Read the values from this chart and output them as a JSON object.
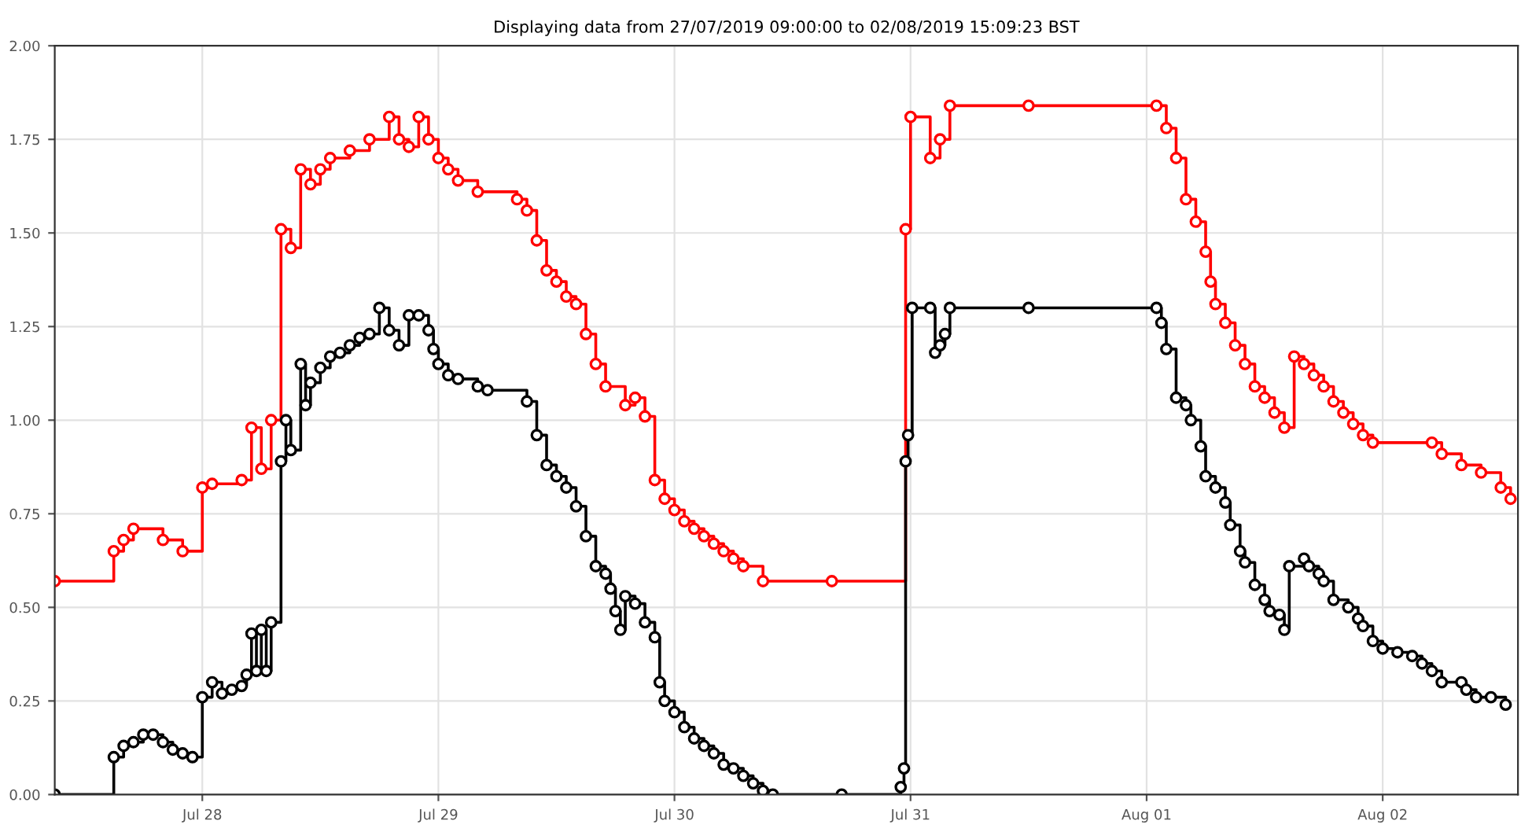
{
  "chart_data": {
    "type": "step",
    "title": "Displaying data from 27/07/2019 09:00:00 to 02/08/2019 15:09:23 BST",
    "xlim": [
      "2019-07-27T09:00",
      "2019-08-02T13:45"
    ],
    "xticks": [
      {
        "value": "2019-07-28",
        "label": "Jul 28"
      },
      {
        "value": "2019-07-29",
        "label": "Jul 29"
      },
      {
        "value": "2019-07-30",
        "label": "Jul 30"
      },
      {
        "value": "2019-07-31",
        "label": "Jul 31"
      },
      {
        "value": "2019-08-01",
        "label": "Aug 01"
      },
      {
        "value": "2019-08-02",
        "label": "Aug 02"
      }
    ],
    "ylim": [
      0,
      2
    ],
    "yticks": [
      {
        "value": 0,
        "label": "0.00"
      },
      {
        "value": 0.25,
        "label": "0.25"
      },
      {
        "value": 0.5,
        "label": "0.50"
      },
      {
        "value": 0.75,
        "label": "0.75"
      },
      {
        "value": 1,
        "label": "1.00"
      },
      {
        "value": 1.25,
        "label": "1.25"
      },
      {
        "value": 1.5,
        "label": "1.50"
      },
      {
        "value": 1.75,
        "label": "1.75"
      },
      {
        "value": 2,
        "label": "2.00"
      }
    ],
    "grid": true,
    "marker": "circle",
    "line_style": "solid",
    "series": [
      {
        "color": "#ff0000",
        "x": [
          "2019-07-27T09:00",
          "2019-07-27T15:00",
          "2019-07-27T16:00",
          "2019-07-27T17:00",
          "2019-07-27T20:00",
          "2019-07-27T22:00",
          "2019-07-28T00:00",
          "2019-07-28T01:00",
          "2019-07-28T04:00",
          "2019-07-28T05:00",
          "2019-07-28T06:00",
          "2019-07-28T07:00",
          "2019-07-28T08:00",
          "2019-07-28T09:00",
          "2019-07-28T10:00",
          "2019-07-28T11:00",
          "2019-07-28T12:00",
          "2019-07-28T13:00",
          "2019-07-28T15:00",
          "2019-07-28T17:00",
          "2019-07-28T19:00",
          "2019-07-28T20:00",
          "2019-07-28T21:00",
          "2019-07-28T22:00",
          "2019-07-28T23:00",
          "2019-07-29T00:00",
          "2019-07-29T01:00",
          "2019-07-29T02:00",
          "2019-07-29T04:00",
          "2019-07-29T08:00",
          "2019-07-29T09:00",
          "2019-07-29T10:00",
          "2019-07-29T11:00",
          "2019-07-29T12:00",
          "2019-07-29T13:00",
          "2019-07-29T14:00",
          "2019-07-29T15:00",
          "2019-07-29T16:00",
          "2019-07-29T17:00",
          "2019-07-29T19:00",
          "2019-07-29T20:00",
          "2019-07-29T21:00",
          "2019-07-29T22:00",
          "2019-07-29T23:00",
          "2019-07-30T00:00",
          "2019-07-30T01:00",
          "2019-07-30T02:00",
          "2019-07-30T03:00",
          "2019-07-30T04:00",
          "2019-07-30T05:00",
          "2019-07-30T06:00",
          "2019-07-30T07:00",
          "2019-07-30T09:00",
          "2019-07-30T16:00",
          "2019-07-30T23:30",
          "2019-07-31T00:00",
          "2019-07-31T02:00",
          "2019-07-31T03:00",
          "2019-07-31T04:00",
          "2019-07-31T12:00",
          "2019-08-01T01:00",
          "2019-08-01T02:00",
          "2019-08-01T03:00",
          "2019-08-01T04:00",
          "2019-08-01T05:00",
          "2019-08-01T06:00",
          "2019-08-01T06:30",
          "2019-08-01T07:00",
          "2019-08-01T08:00",
          "2019-08-01T09:00",
          "2019-08-01T10:00",
          "2019-08-01T11:00",
          "2019-08-01T12:00",
          "2019-08-01T13:00",
          "2019-08-01T14:00",
          "2019-08-01T15:00",
          "2019-08-01T16:00",
          "2019-08-01T17:00",
          "2019-08-01T18:00",
          "2019-08-01T19:00",
          "2019-08-01T20:00",
          "2019-08-01T21:00",
          "2019-08-01T22:00",
          "2019-08-01T23:00",
          "2019-08-02T05:00",
          "2019-08-02T06:00",
          "2019-08-02T08:00",
          "2019-08-02T10:00",
          "2019-08-02T12:00",
          "2019-08-02T13:00"
        ],
        "values": [
          0.57,
          0.65,
          0.68,
          0.71,
          0.68,
          0.65,
          0.82,
          0.83,
          0.84,
          0.98,
          0.87,
          1.0,
          1.51,
          1.46,
          1.67,
          1.63,
          1.67,
          1.7,
          1.72,
          1.75,
          1.81,
          1.75,
          1.73,
          1.81,
          1.75,
          1.7,
          1.67,
          1.64,
          1.61,
          1.59,
          1.56,
          1.48,
          1.4,
          1.37,
          1.33,
          1.31,
          1.23,
          1.15,
          1.09,
          1.04,
          1.06,
          1.01,
          0.84,
          0.79,
          0.76,
          0.73,
          0.71,
          0.69,
          0.67,
          0.65,
          0.63,
          0.61,
          0.57,
          0.57,
          1.51,
          1.81,
          1.7,
          1.75,
          1.84,
          1.84,
          1.84,
          1.78,
          1.7,
          1.59,
          1.53,
          1.45,
          1.37,
          1.31,
          1.26,
          1.2,
          1.15,
          1.09,
          1.06,
          1.02,
          0.98,
          1.17,
          1.15,
          1.12,
          1.09,
          1.05,
          1.02,
          0.99,
          0.96,
          0.94,
          0.94,
          0.91,
          0.88,
          0.86,
          0.82,
          0.79
        ]
      },
      {
        "color": "#000000",
        "x": [
          "2019-07-27T09:00",
          "2019-07-27T15:00",
          "2019-07-27T16:00",
          "2019-07-27T17:00",
          "2019-07-27T18:00",
          "2019-07-27T19:00",
          "2019-07-27T20:00",
          "2019-07-27T21:00",
          "2019-07-27T22:00",
          "2019-07-27T23:00",
          "2019-07-28T00:00",
          "2019-07-28T01:00",
          "2019-07-28T02:00",
          "2019-07-28T03:00",
          "2019-07-28T04:00",
          "2019-07-28T04:30",
          "2019-07-28T05:00",
          "2019-07-28T05:30",
          "2019-07-28T06:00",
          "2019-07-28T06:30",
          "2019-07-28T07:00",
          "2019-07-28T08:00",
          "2019-07-28T08:30",
          "2019-07-28T09:00",
          "2019-07-28T10:00",
          "2019-07-28T10:30",
          "2019-07-28T11:00",
          "2019-07-28T12:00",
          "2019-07-28T13:00",
          "2019-07-28T14:00",
          "2019-07-28T15:00",
          "2019-07-28T16:00",
          "2019-07-28T17:00",
          "2019-07-28T18:00",
          "2019-07-28T19:00",
          "2019-07-28T20:00",
          "2019-07-28T21:00",
          "2019-07-28T22:00",
          "2019-07-28T23:00",
          "2019-07-28T23:30",
          "2019-07-29T00:00",
          "2019-07-29T01:00",
          "2019-07-29T02:00",
          "2019-07-29T04:00",
          "2019-07-29T05:00",
          "2019-07-29T09:00",
          "2019-07-29T10:00",
          "2019-07-29T11:00",
          "2019-07-29T12:00",
          "2019-07-29T13:00",
          "2019-07-29T14:00",
          "2019-07-29T15:00",
          "2019-07-29T16:00",
          "2019-07-29T17:00",
          "2019-07-29T17:30",
          "2019-07-29T18:00",
          "2019-07-29T18:30",
          "2019-07-29T19:00",
          "2019-07-29T20:00",
          "2019-07-29T21:00",
          "2019-07-29T22:00",
          "2019-07-29T22:30",
          "2019-07-29T23:00",
          "2019-07-30T00:00",
          "2019-07-30T01:00",
          "2019-07-30T02:00",
          "2019-07-30T03:00",
          "2019-07-30T04:00",
          "2019-07-30T05:00",
          "2019-07-30T06:00",
          "2019-07-30T07:00",
          "2019-07-30T08:00",
          "2019-07-30T09:00",
          "2019-07-30T10:00",
          "2019-07-30T17:00",
          "2019-07-30T23:00",
          "2019-07-30T23:20",
          "2019-07-30T23:30",
          "2019-07-30T23:45",
          "2019-07-31T00:10",
          "2019-07-31T02:00",
          "2019-07-31T02:30",
          "2019-07-31T03:00",
          "2019-07-31T03:30",
          "2019-07-31T04:00",
          "2019-07-31T12:00",
          "2019-08-01T01:00",
          "2019-08-01T01:30",
          "2019-08-01T02:00",
          "2019-08-01T03:00",
          "2019-08-01T04:00",
          "2019-08-01T04:30",
          "2019-08-01T05:30",
          "2019-08-01T06:00",
          "2019-08-01T07:00",
          "2019-08-01T08:00",
          "2019-08-01T08:30",
          "2019-08-01T09:30",
          "2019-08-01T10:00",
          "2019-08-01T11:00",
          "2019-08-01T12:00",
          "2019-08-01T12:30",
          "2019-08-01T13:30",
          "2019-08-01T14:00",
          "2019-08-01T14:30",
          "2019-08-01T16:00",
          "2019-08-01T16:30",
          "2019-08-01T17:30",
          "2019-08-01T18:00",
          "2019-08-01T19:00",
          "2019-08-01T20:30",
          "2019-08-01T21:30",
          "2019-08-01T22:00",
          "2019-08-01T23:00",
          "2019-08-02T00:00",
          "2019-08-02T01:30",
          "2019-08-02T03:00",
          "2019-08-02T04:00",
          "2019-08-02T05:00",
          "2019-08-02T06:00",
          "2019-08-02T08:00",
          "2019-08-02T08:30",
          "2019-08-02T09:30",
          "2019-08-02T11:00",
          "2019-08-02T12:30"
        ],
        "values": [
          0.0,
          0.1,
          0.13,
          0.14,
          0.16,
          0.16,
          0.14,
          0.12,
          0.11,
          0.1,
          0.26,
          0.3,
          0.27,
          0.28,
          0.29,
          0.32,
          0.43,
          0.33,
          0.44,
          0.33,
          0.46,
          0.89,
          1.0,
          0.92,
          1.15,
          1.04,
          1.1,
          1.14,
          1.17,
          1.18,
          1.2,
          1.22,
          1.23,
          1.3,
          1.24,
          1.2,
          1.28,
          1.28,
          1.24,
          1.19,
          1.15,
          1.12,
          1.11,
          1.09,
          1.08,
          1.05,
          0.96,
          0.88,
          0.85,
          0.82,
          0.77,
          0.69,
          0.61,
          0.59,
          0.55,
          0.49,
          0.44,
          0.53,
          0.51,
          0.46,
          0.42,
          0.3,
          0.25,
          0.22,
          0.18,
          0.15,
          0.13,
          0.11,
          0.08,
          0.07,
          0.05,
          0.03,
          0.01,
          0.0,
          0.0,
          0.02,
          0.07,
          0.89,
          0.96,
          1.3,
          1.3,
          1.18,
          1.2,
          1.23,
          1.3,
          1.3,
          1.3,
          1.26,
          1.19,
          1.06,
          1.04,
          1.0,
          0.93,
          0.85,
          0.82,
          0.78,
          0.72,
          0.65,
          0.62,
          0.56,
          0.52,
          0.49,
          0.48,
          0.44,
          0.61,
          0.63,
          0.61,
          0.59,
          0.57,
          0.52,
          0.5,
          0.47,
          0.45,
          0.41,
          0.39,
          0.38,
          0.37,
          0.35,
          0.33,
          0.3,
          0.3,
          0.28,
          0.26,
          0.26,
          0.24
        ]
      }
    ]
  }
}
